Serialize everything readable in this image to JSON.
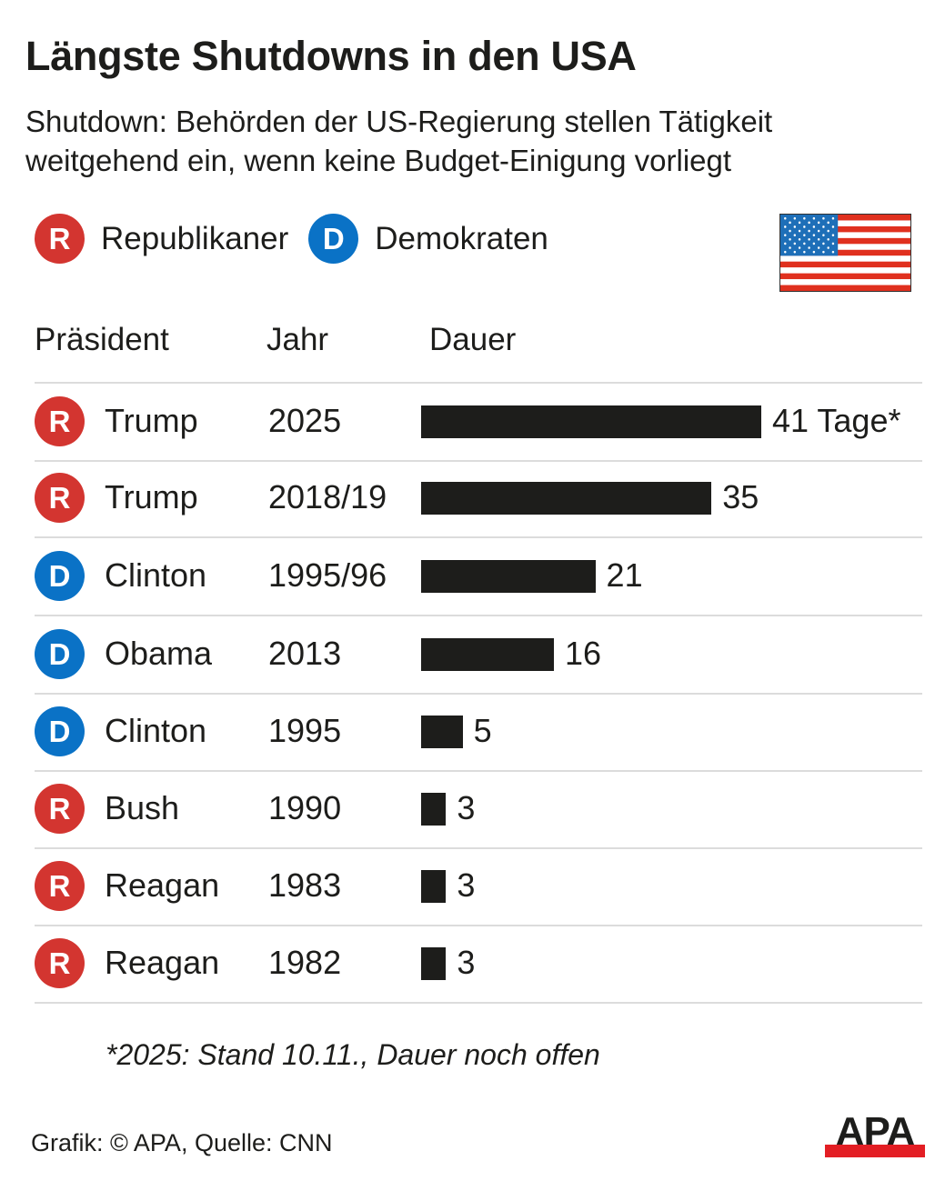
{
  "header": {
    "title": "Längste Shutdowns in den USA",
    "subtitle": "Shutdown: Behörden der US-Regierung stellen Tätigkeit weitgehend ein, wenn keine Budget-Einigung vorliegt"
  },
  "legend": [
    {
      "letter": "R",
      "label": "Republikaner",
      "color": "#d33530"
    },
    {
      "letter": "D",
      "label": "Demokraten",
      "color": "#0a72c6"
    }
  ],
  "flag_icon": "us-flag-icon",
  "columns": {
    "president": "Präsident",
    "year": "Jahr",
    "duration": "Dauer"
  },
  "chart_data": {
    "type": "bar",
    "orientation": "horizontal",
    "title": "Längste Shutdowns in den USA",
    "xlabel": "Dauer (Tage)",
    "ylabel": "",
    "xlim": [
      0,
      41
    ],
    "grid": false,
    "legend": "top-left",
    "categories": [
      "Trump 2025",
      "Trump 2018/19",
      "Clinton 1995/96",
      "Obama 2013",
      "Clinton 1995",
      "Bush 1990",
      "Reagan 1983",
      "Reagan 1982"
    ],
    "values": [
      41,
      35,
      21,
      16,
      5,
      3,
      3,
      3
    ],
    "rows": [
      {
        "party": "R",
        "president": "Trump",
        "year": "2025",
        "days": 41,
        "label": "41 Tage*"
      },
      {
        "party": "R",
        "president": "Trump",
        "year": "2018/19",
        "days": 35,
        "label": "35"
      },
      {
        "party": "D",
        "president": "Clinton",
        "year": "1995/96",
        "days": 21,
        "label": "21"
      },
      {
        "party": "D",
        "president": "Obama",
        "year": "2013",
        "days": 16,
        "label": "16"
      },
      {
        "party": "D",
        "president": "Clinton",
        "year": "1995",
        "days": 5,
        "label": "5"
      },
      {
        "party": "R",
        "president": "Bush",
        "year": "1990",
        "days": 3,
        "label": "3"
      },
      {
        "party": "R",
        "president": "Reagan",
        "year": "1983",
        "days": 3,
        "label": "3"
      },
      {
        "party": "R",
        "president": "Reagan",
        "year": "1982",
        "days": 3,
        "label": "3"
      }
    ],
    "bar_color": "#1d1d1b",
    "annotation": "*2025: Stand 10.11., Dauer noch offen"
  },
  "footer": {
    "footnote": "*2025: Stand 10.11., Dauer noch offen",
    "source": "Grafik: © APA, Quelle: CNN",
    "logo": "APA",
    "logo_accent": "#e31e24"
  }
}
